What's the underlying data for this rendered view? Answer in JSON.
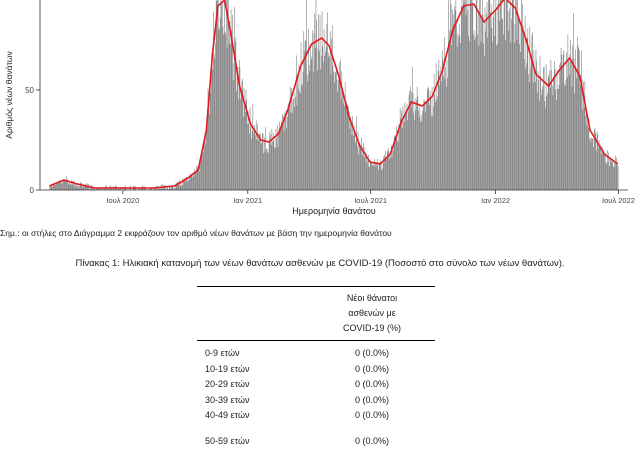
{
  "chart_data": {
    "type": "bar",
    "ylabel": "Αριθμός νέων θανάτων",
    "xlabel": "Ημερομηνία θανάτου",
    "x_ticks": [
      "Ιουλ 2020",
      "Ιαν 2021",
      "Ιουλ 2021",
      "Ιαν 2022",
      "Ιουλ 2022"
    ],
    "x_tick_dates": [
      "2020-07-01",
      "2021-01-01",
      "2021-07-01",
      "2022-01-01",
      "2022-07-01"
    ],
    "x_range": [
      "2020-03-01",
      "2022-07-15"
    ],
    "y_ticks": [
      0,
      50
    ],
    "ylim": [
      0,
      95
    ],
    "bar_color": "#7f7f7f",
    "line_color": "#e31a1c",
    "bar_series": {
      "name": "",
      "x_start": "2020-03-15",
      "x_end": "2022-06-30"
    },
    "line_series": {
      "name": "",
      "points": [
        [
          "2020-03-15",
          2
        ],
        [
          "2020-04-05",
          5
        ],
        [
          "2020-04-25",
          3
        ],
        [
          "2020-05-20",
          1
        ],
        [
          "2020-07-01",
          1
        ],
        [
          "2020-08-15",
          1
        ],
        [
          "2020-09-15",
          2
        ],
        [
          "2020-10-05",
          6
        ],
        [
          "2020-10-20",
          10
        ],
        [
          "2020-11-01",
          30
        ],
        [
          "2020-11-10",
          68
        ],
        [
          "2020-11-18",
          92
        ],
        [
          "2020-11-28",
          95
        ],
        [
          "2020-12-08",
          76
        ],
        [
          "2020-12-20",
          52
        ],
        [
          "2021-01-05",
          33
        ],
        [
          "2021-01-20",
          25
        ],
        [
          "2021-02-01",
          24
        ],
        [
          "2021-02-15",
          28
        ],
        [
          "2021-03-01",
          40
        ],
        [
          "2021-03-20",
          62
        ],
        [
          "2021-04-05",
          73
        ],
        [
          "2021-04-20",
          76
        ],
        [
          "2021-05-01",
          72
        ],
        [
          "2021-05-15",
          57
        ],
        [
          "2021-05-30",
          37
        ],
        [
          "2021-06-15",
          22
        ],
        [
          "2021-06-30",
          14
        ],
        [
          "2021-07-15",
          13
        ],
        [
          "2021-07-30",
          18
        ],
        [
          "2021-08-15",
          34
        ],
        [
          "2021-08-30",
          44
        ],
        [
          "2021-09-15",
          42
        ],
        [
          "2021-09-30",
          47
        ],
        [
          "2021-10-15",
          60
        ],
        [
          "2021-10-30",
          80
        ],
        [
          "2021-11-15",
          92
        ],
        [
          "2021-11-30",
          93
        ],
        [
          "2021-12-15",
          84
        ],
        [
          "2022-01-01",
          90
        ],
        [
          "2022-01-15",
          96
        ],
        [
          "2022-01-30",
          91
        ],
        [
          "2022-02-15",
          75
        ],
        [
          "2022-03-01",
          58
        ],
        [
          "2022-03-20",
          52
        ],
        [
          "2022-04-05",
          60
        ],
        [
          "2022-04-20",
          66
        ],
        [
          "2022-05-05",
          57
        ],
        [
          "2022-05-20",
          30
        ],
        [
          "2022-06-10",
          18
        ],
        [
          "2022-06-30",
          13
        ]
      ]
    }
  },
  "note": "Σημ.: οι στήλες στο Διάγραμμα 2 εκφράζουν τον αριθμό νέων θανάτων με βάση την ημερομηνία θανάτου",
  "table": {
    "caption": "Πίνακας 1: Ηλικιακή κατανομή των νέων θανάτων ασθενών με COVID-19 (Ποσοστό στο σύνολο των νέων θανάτων).",
    "header_line1": "Νέοι θάνατοι",
    "header_line2": "ασθενών με",
    "header_line3": "COVID-19 (%)",
    "rows": [
      {
        "group": "0-9 ετών",
        "value": "0 (0.0%)"
      },
      {
        "group": "10-19 ετών",
        "value": "0 (0.0%)"
      },
      {
        "group": "20-29 ετών",
        "value": "0 (0.0%)"
      },
      {
        "group": "30-39 ετών",
        "value": "0 (0.0%)"
      },
      {
        "group": "40-49 ετών",
        "value": "0 (0.0%)"
      },
      {
        "group": "50-59 ετών",
        "value": "0 (0.0%)"
      }
    ]
  }
}
